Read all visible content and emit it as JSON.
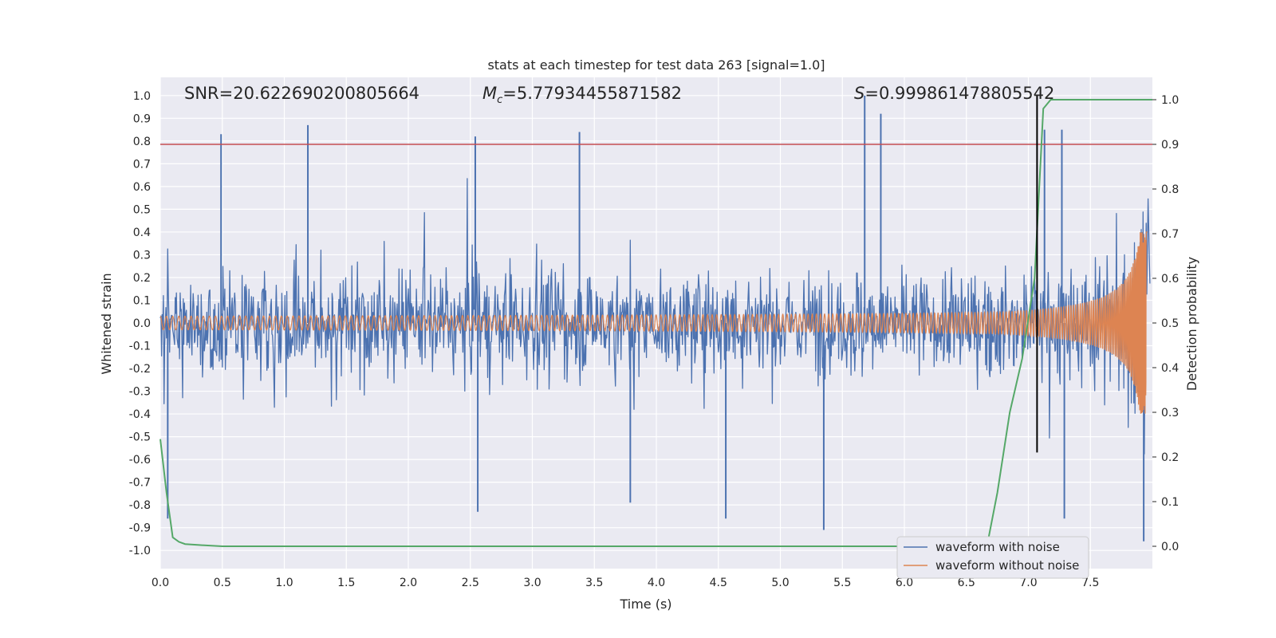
{
  "chart_data": {
    "type": "line",
    "title": "stats at each timestep for test data 263 [signal=1.0]",
    "xlabel": "Time (s)",
    "ylabel": "Whitened strain",
    "y2label": "Detection probability",
    "xlim": [
      0.0,
      8.0
    ],
    "ylim": [
      -1.08,
      1.08
    ],
    "y2lim": [
      -0.05,
      1.05
    ],
    "xticks": [
      "0.0",
      "0.5",
      "1.0",
      "1.5",
      "2.0",
      "2.5",
      "3.0",
      "3.5",
      "4.0",
      "4.5",
      "5.0",
      "5.5",
      "6.0",
      "6.5",
      "7.0",
      "7.5"
    ],
    "yticks": [
      "1.0",
      "0.9",
      "0.8",
      "0.7",
      "0.6",
      "0.5",
      "0.4",
      "0.3",
      "0.2",
      "0.1",
      "0.0",
      "-0.1",
      "-0.2",
      "-0.3",
      "-0.4",
      "-0.5",
      "-0.6",
      "-0.7",
      "-0.8",
      "-0.9",
      "-1.0"
    ],
    "y2ticks": [
      "1.0",
      "0.9",
      "0.8",
      "0.7",
      "0.6",
      "0.5",
      "0.4",
      "0.3",
      "0.2",
      "0.1",
      "0.0"
    ],
    "annotations": {
      "snr": "SNR=20.622690200805664",
      "mc_symbol": "M",
      "mc_sub": "c",
      "mc_value": "=5.77934455871582",
      "s_symbol": "S",
      "s_value": "=0.999861478805542"
    },
    "threshold": {
      "axis": "y2",
      "value": 0.9,
      "color": "#c44e52"
    },
    "marker_time": 7.07,
    "series": [
      {
        "name": "waveform with noise",
        "color": "#4c72b0",
        "kind": "noise",
        "points_per_second": 200,
        "typical_amplitude": 0.45,
        "spikes": [
          {
            "t": 0.49,
            "v": 0.83
          },
          {
            "t": 1.19,
            "v": 0.87
          },
          {
            "t": 2.54,
            "v": 0.82
          },
          {
            "t": 3.38,
            "v": 0.84
          },
          {
            "t": 5.68,
            "v": 1.0
          },
          {
            "t": 5.81,
            "v": 0.92
          },
          {
            "t": 7.13,
            "v": 0.85
          },
          {
            "t": 7.27,
            "v": 0.85
          },
          {
            "t": 2.56,
            "v": -0.83
          },
          {
            "t": 5.35,
            "v": -0.91
          },
          {
            "t": 4.56,
            "v": -0.86
          },
          {
            "t": 7.29,
            "v": -0.86
          },
          {
            "t": 7.93,
            "v": -0.96
          },
          {
            "t": 0.06,
            "v": -0.86
          },
          {
            "t": 3.79,
            "v": -0.79
          }
        ]
      },
      {
        "name": "waveform without noise",
        "color": "#dd8452",
        "kind": "chirp",
        "t_merger": 7.97,
        "base_amplitude": 0.03,
        "peak_amplitude": 0.4,
        "start_frequency": 20
      },
      {
        "name": "detection probability",
        "color": "#55a868",
        "axis": "y2",
        "x": [
          0.0,
          0.05,
          0.1,
          0.15,
          0.2,
          0.3,
          0.5,
          1.0,
          2.0,
          3.0,
          4.0,
          5.0,
          6.0,
          6.5,
          6.6,
          6.68,
          6.75,
          6.85,
          6.95,
          7.05,
          7.12,
          7.18,
          7.3,
          7.5,
          8.0
        ],
        "y": [
          0.24,
          0.12,
          0.02,
          0.01,
          0.005,
          0.003,
          0.0,
          0.0,
          0.0,
          0.0,
          0.0,
          0.0,
          0.0,
          0.0,
          0.0,
          0.02,
          0.12,
          0.3,
          0.42,
          0.6,
          0.98,
          1.0,
          1.0,
          1.0,
          1.0
        ]
      }
    ],
    "legend": {
      "placement": "bottom-right",
      "entries": [
        {
          "label": "waveform with noise",
          "color": "#4c72b0"
        },
        {
          "label": "waveform without noise",
          "color": "#dd8452"
        }
      ]
    }
  }
}
